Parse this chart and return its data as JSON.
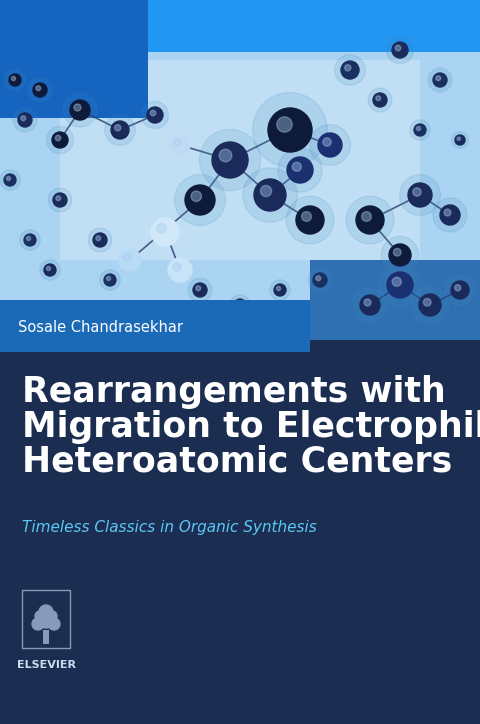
{
  "bg_color": "#1b2d50",
  "author_text": "Sosale Chandrasekhar",
  "author_color": "#ffffff",
  "title_line1": "Rearrangements with",
  "title_line2": "Migration to Electrophilic",
  "title_line3": "Heteroatomic Centers",
  "title_color": "#ffffff",
  "subtitle": "Timeless Classics in Organic Synthesis",
  "subtitle_color": "#5bc8f5",
  "publisher": "ELSEVIER",
  "publisher_color": "#ccddee",
  "photo_bg": "#b8dcf5",
  "photo_mid": "#7ec4ef",
  "photo_dark": "#3a6ea8",
  "block_blue_dark": "#1565c0",
  "block_blue_mid": "#1a7ad4",
  "author_band_color": "#1a6ab8",
  "sphere_dark": "#0d1a3a",
  "sphere_mid": "#1a3070",
  "sphere_light": "#c8e4f8",
  "sphere_white": "#e8f4ff",
  "line_color": "#1a3060"
}
